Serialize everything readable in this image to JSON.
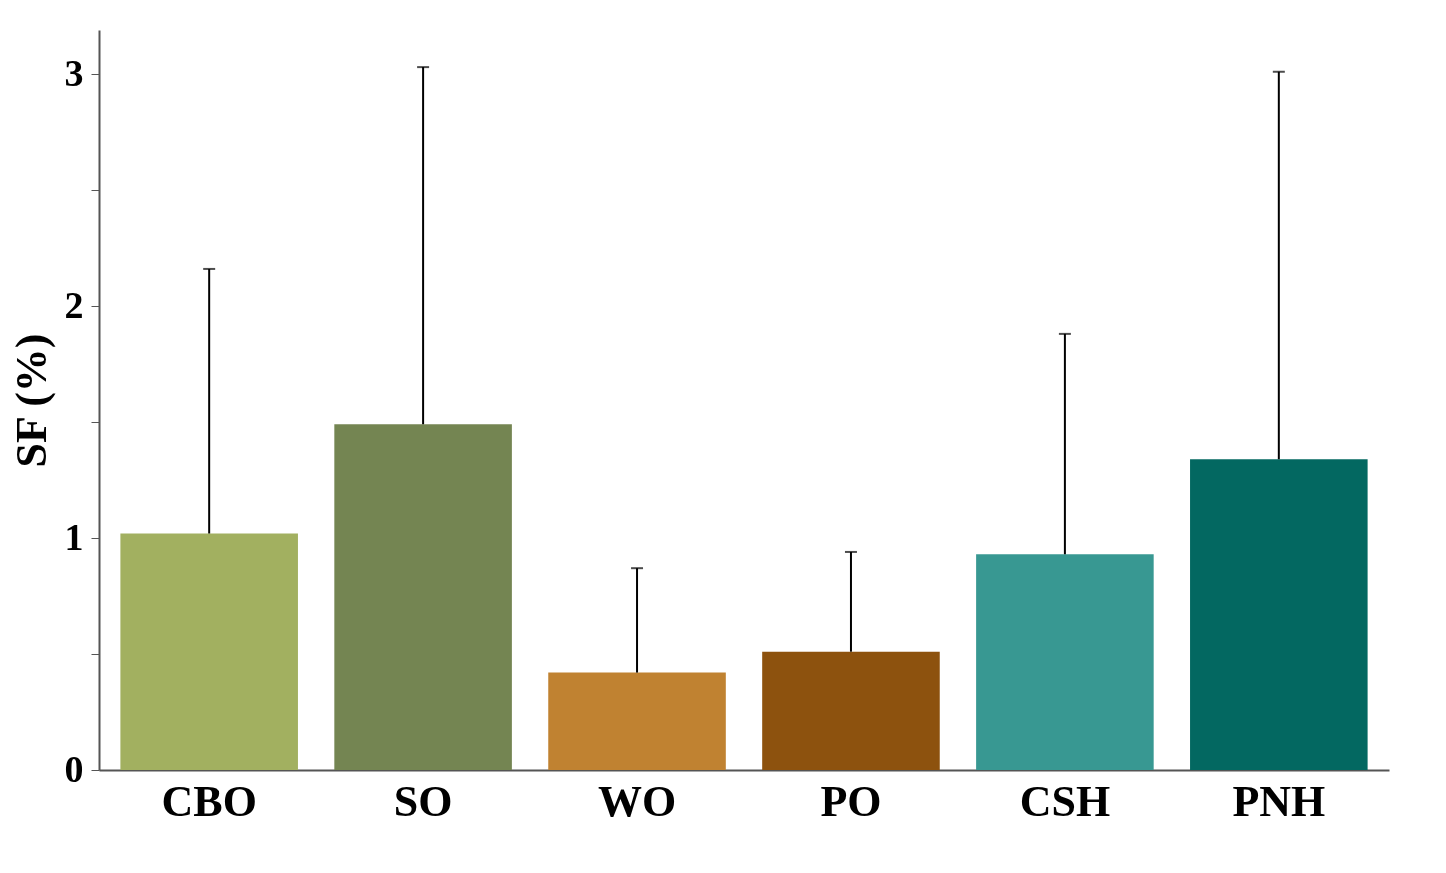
{
  "chart_data": {
    "type": "bar",
    "ylabel": "SF (%)",
    "categories": [
      "CBO",
      "SO",
      "WO",
      "PO",
      "CSH",
      "PNH"
    ],
    "values": [
      1.02,
      1.49,
      0.42,
      0.51,
      0.93,
      1.34
    ],
    "colors": [
      "#a2b060",
      "#748552",
      "#c08231",
      "#8d520e",
      "#389892",
      "#036861"
    ],
    "errors": [
      [
        1.02,
        2.16
      ],
      [
        1.49,
        3.03
      ],
      [
        0.42,
        0.87
      ],
      [
        0.51,
        0.94
      ],
      [
        0.93,
        1.88
      ],
      [
        1.34,
        3.01
      ]
    ],
    "ylim": [
      0,
      3.19
    ],
    "yticks": [
      0,
      {
        "value": 0.5,
        "label": null
      },
      1,
      {
        "value": 1.5,
        "label": null
      },
      2,
      {
        "value": 2.5,
        "label": null
      },
      3
    ],
    "grid": false
  }
}
